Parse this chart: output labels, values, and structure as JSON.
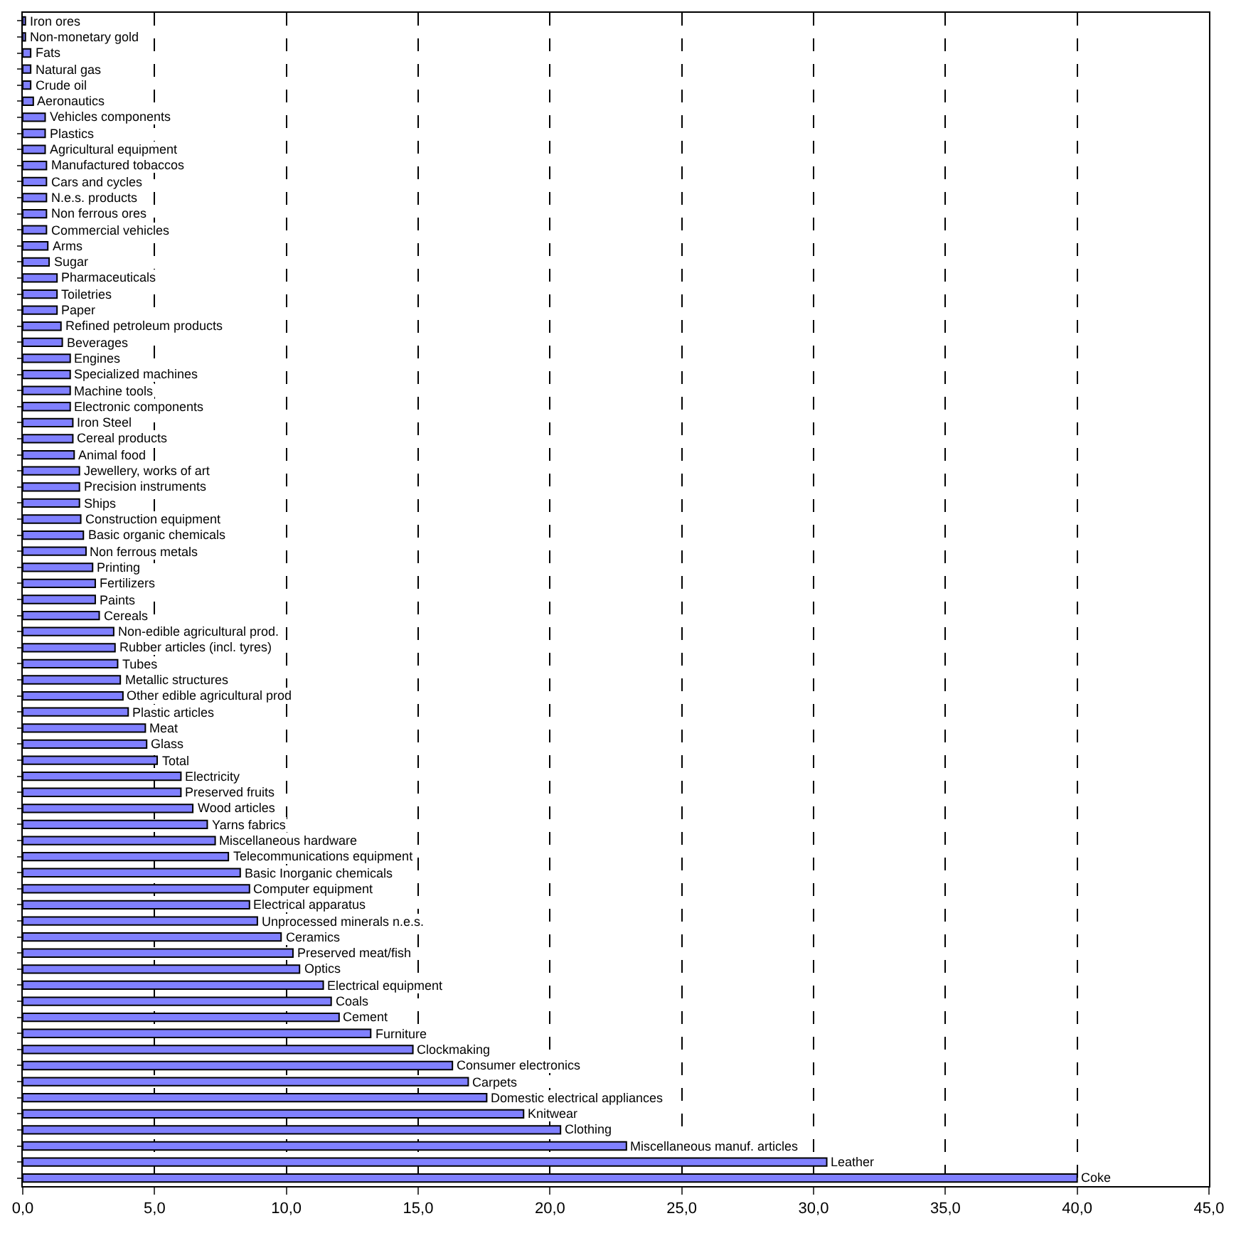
{
  "chart_data": {
    "type": "bar",
    "orientation": "horizontal",
    "tick_labels": "x",
    "grid": "x",
    "categories": [
      "Iron ores",
      "Non-monetary gold",
      "Fats",
      "Natural gas",
      "Crude oil",
      "Aeronautics",
      "Vehicles components",
      "Plastics",
      "Agricultural equipment",
      "Manufactured tobaccos",
      "Cars and cycles",
      "N.e.s. products",
      "Non ferrous ores",
      "Commercial vehicles",
      "Arms",
      "Sugar",
      "Pharmaceuticals",
      "Toiletries",
      "Paper",
      "Refined petroleum products",
      "Beverages",
      "Engines",
      "Specialized machines",
      "Machine tools",
      "Electronic components",
      "Iron Steel",
      "Cereal products",
      "Animal food",
      "Jewellery, works of art",
      "Precision instruments",
      "Ships",
      "Construction equipment",
      "Basic organic chemicals",
      "Non ferrous metals",
      "Printing",
      "Fertilizers",
      "Paints",
      "Cereals",
      "Non-edible agricultural prod.",
      "Rubber articles (incl. tyres)",
      "Tubes",
      "Metallic structures",
      "Other edible agricultural prod",
      "Plastic articles",
      "Meat",
      "Glass",
      "Total",
      "Electricity",
      "Preserved fruits",
      "Wood articles",
      "Yarns fabrics",
      "Miscellaneous hardware",
      "Telecommunications equipment",
      "Basic Inorganic chemicals",
      "Computer equipment",
      "Electrical apparatus",
      "Unprocessed minerals n.e.s.",
      "Ceramics",
      "Preserved meat/fish",
      "Optics",
      "Electrical equipment",
      "Coals",
      "Cement",
      "Furniture",
      "Clockmaking",
      "Consumer electronics",
      "Carpets",
      "Domestic electrical appliances",
      "Knitwear",
      "Clothing",
      "Miscellaneous manuf. articles",
      "Leather",
      "Coke"
    ],
    "series": [
      {
        "color": "#8080ff",
        "values": [
          0.1,
          0.1,
          0.3,
          0.3,
          0.3,
          0.4,
          0.85,
          0.85,
          0.85,
          0.9,
          0.9,
          0.9,
          0.9,
          0.9,
          0.95,
          1.0,
          1.3,
          1.3,
          1.3,
          1.45,
          1.5,
          1.8,
          1.8,
          1.8,
          1.8,
          1.9,
          1.9,
          1.95,
          2.15,
          2.15,
          2.15,
          2.2,
          2.3,
          2.4,
          2.65,
          2.75,
          2.75,
          2.9,
          3.45,
          3.5,
          3.6,
          3.7,
          3.8,
          4.0,
          4.65,
          4.7,
          5.1,
          6.0,
          6.0,
          6.45,
          7.0,
          7.3,
          7.8,
          8.25,
          8.6,
          8.6,
          8.9,
          9.8,
          10.25,
          10.5,
          11.4,
          11.7,
          12.0,
          13.2,
          14.8,
          16.3,
          16.9,
          17.6,
          19.0,
          20.4,
          22.9,
          30.5,
          40.0
        ]
      }
    ],
    "xlim": [
      0,
      45
    ],
    "xticks": [
      {
        "value": 0,
        "label": "0,0"
      },
      {
        "value": 5,
        "label": "5,0"
      },
      {
        "value": 10,
        "label": "10,0"
      },
      {
        "value": 15,
        "label": "15,0"
      },
      {
        "value": 20,
        "label": "20,0"
      },
      {
        "value": 25,
        "label": "25,0"
      },
      {
        "value": 30,
        "label": "30,0"
      },
      {
        "value": 35,
        "label": "35,0"
      },
      {
        "value": 40,
        "label": "40,0"
      },
      {
        "value": 45,
        "label": "45,0"
      }
    ]
  }
}
